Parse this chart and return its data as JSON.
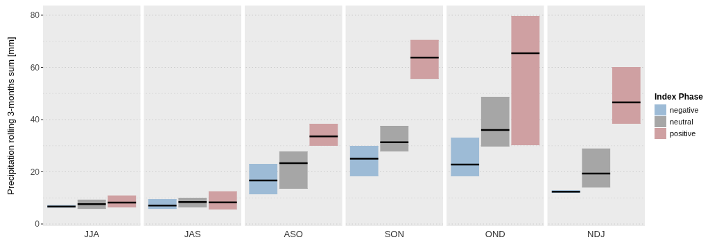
{
  "chart_data": {
    "type": "box",
    "ylabel": "Precipitation rolling 3-months sum [mm]",
    "legend_title": "Index Phase",
    "legend": "right",
    "grid": true,
    "categories": [
      "JJA",
      "JAS",
      "ASO",
      "SON",
      "OND",
      "NDJ"
    ],
    "ylim": [
      -0.8,
      83.7
    ],
    "yticks": [
      0,
      {
        "value": 10,
        "label": null
      },
      20,
      {
        "value": 30,
        "label": null
      },
      40,
      {
        "value": 50,
        "label": null
      },
      60,
      {
        "value": 70,
        "label": null
      },
      80
    ],
    "series": [
      {
        "name": "negative",
        "color": "#9dbbd6",
        "boxes": [
          {
            "low": 6.3,
            "q1": 6.3,
            "median": 6.7,
            "q3": 7.2,
            "high": 7.2
          },
          {
            "low": 5.8,
            "q1": 5.8,
            "median": 7.1,
            "q3": 9.5,
            "high": 9.5
          },
          {
            "low": 11.4,
            "q1": 11.4,
            "median": 16.7,
            "q3": 23,
            "high": 23
          },
          {
            "low": 18.3,
            "q1": 18.3,
            "median": 25,
            "q3": 29.9,
            "high": 29.9
          },
          {
            "low": 18.3,
            "q1": 18.3,
            "median": 22.8,
            "q3": 33.1,
            "high": 33.1
          },
          {
            "low": 11.9,
            "q1": 11.9,
            "median": 12.4,
            "q3": 12.9,
            "high": 12.9
          }
        ]
      },
      {
        "name": "neutral",
        "color": "#a6a6a6",
        "boxes": [
          {
            "low": 5.8,
            "q1": 5.8,
            "median": 7.6,
            "q3": 9.3,
            "high": 9.3
          },
          {
            "low": 6.4,
            "q1": 6.4,
            "median": 8.4,
            "q3": 10,
            "high": 10
          },
          {
            "low": 13.5,
            "q1": 13.5,
            "median": 23.3,
            "q3": 27.8,
            "high": 27.8
          },
          {
            "low": 27.8,
            "q1": 27.8,
            "median": 31.3,
            "q3": 37.6,
            "high": 37.6
          },
          {
            "low": 29.7,
            "q1": 29.7,
            "median": 36,
            "q3": 48.7,
            "high": 48.7
          },
          {
            "low": 14,
            "q1": 14,
            "median": 19.3,
            "q3": 28.9,
            "high": 28.9
          }
        ]
      },
      {
        "name": "positive",
        "color": "#cfa0a2",
        "boxes": [
          {
            "low": 6.4,
            "q1": 6.4,
            "median": 8.2,
            "q3": 10.9,
            "high": 10.9
          },
          {
            "low": 5.6,
            "q1": 5.6,
            "median": 8.3,
            "q3": 12.5,
            "high": 12.5
          },
          {
            "low": 30,
            "q1": 30,
            "median": 33.6,
            "q3": 38.4,
            "high": 38.4
          },
          {
            "low": 55.6,
            "q1": 55.6,
            "median": 63.8,
            "q3": 70.5,
            "high": 70.5
          },
          {
            "low": 30.2,
            "q1": 30.2,
            "median": 65.4,
            "q3": 79.7,
            "high": 79.7
          },
          {
            "low": 38.4,
            "q1": 38.4,
            "median": 46.6,
            "q3": 60.1,
            "high": 60.1
          }
        ]
      }
    ]
  }
}
